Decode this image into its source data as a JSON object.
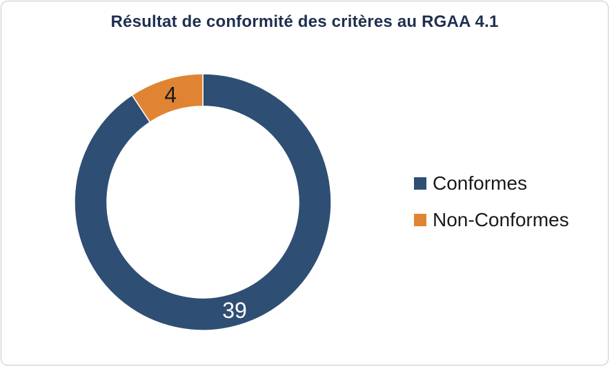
{
  "chart_data": {
    "type": "pie",
    "subtype": "donut",
    "title": "Résultat de conformité des critères au RGAA 4.1",
    "categories": [
      "Conformes",
      "Non-Conformes"
    ],
    "values": [
      39,
      4
    ],
    "colors": [
      "#2f4e74",
      "#e08433"
    ],
    "data_labels": [
      "39",
      "4"
    ],
    "label_colors": [
      "#ffffff",
      "#1a1a1a"
    ],
    "legend_position": "right",
    "title_color": "#1f2f4f"
  }
}
